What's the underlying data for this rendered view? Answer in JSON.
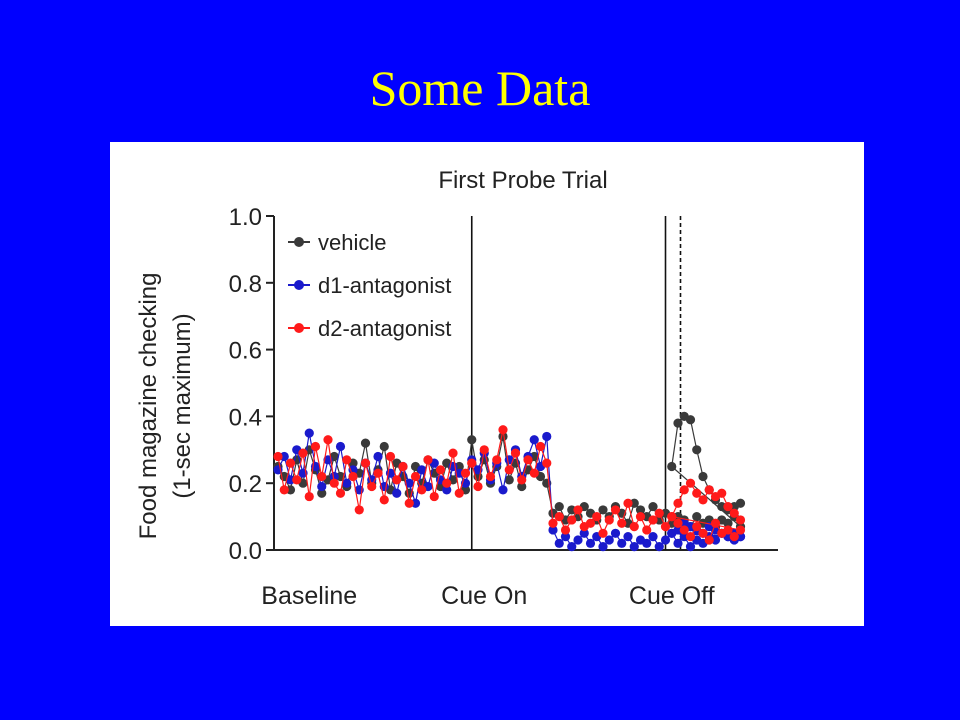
{
  "slide": {
    "title": "Some Data"
  },
  "chart_data": {
    "type": "scatter",
    "title": "First Probe Trial",
    "ylabel_lines": [
      "Food magazine checking",
      "(1-sec maximum)"
    ],
    "ylim": [
      0.0,
      1.0
    ],
    "yticks": [
      "0.0",
      "0.2",
      "0.4",
      "0.6",
      "0.8",
      "1.0"
    ],
    "x_range": [
      0,
      40
    ],
    "xticks": [
      {
        "label": "Baseline",
        "x": 2.5
      },
      {
        "label": "Cue On",
        "x": 16.5
      },
      {
        "label": "Cue Off",
        "x": 31.5
      }
    ],
    "markers": [
      {
        "x": 15.5,
        "style": "solid"
      },
      {
        "x": 31.0,
        "style": "solid"
      },
      {
        "x": 32.2,
        "style": "dashed"
      }
    ],
    "legend_position": "top-left",
    "grid": false,
    "series": [
      {
        "name": "vehicle",
        "color": "#3a3a3a",
        "x": [
          0,
          0.5,
          1,
          1.5,
          2,
          2.5,
          3,
          3.5,
          4,
          4.5,
          5,
          5.5,
          6,
          6.5,
          7,
          7.5,
          8,
          8.5,
          9,
          9.5,
          10,
          10.5,
          11,
          11.5,
          12,
          12.5,
          13,
          13.5,
          14,
          14.5,
          15,
          15.5,
          16,
          16.5,
          17,
          17.5,
          18,
          18.5,
          19,
          19.5,
          20,
          20.5,
          21,
          21.5,
          22,
          22.5,
          23,
          23.5,
          24,
          24.5,
          25,
          25.5,
          26,
          26.5,
          27,
          27.5,
          28,
          28.5,
          29,
          29.5,
          30,
          30.5,
          31,
          31.5,
          32,
          32.5,
          33,
          33.5,
          34,
          34.5,
          35,
          35.5,
          36,
          36.5,
          37
        ],
        "y": [
          0.25,
          0.22,
          0.18,
          0.27,
          0.2,
          0.3,
          0.24,
          0.17,
          0.21,
          0.28,
          0.22,
          0.19,
          0.26,
          0.23,
          0.32,
          0.2,
          0.24,
          0.31,
          0.18,
          0.26,
          0.22,
          0.17,
          0.25,
          0.2,
          0.27,
          0.23,
          0.19,
          0.26,
          0.21,
          0.25,
          0.18,
          0.33,
          0.22,
          0.27,
          0.2,
          0.25,
          0.34,
          0.21,
          0.26,
          0.19,
          0.24,
          0.28,
          0.22,
          0.2,
          0.11,
          0.13,
          0.09,
          0.12,
          0.1,
          0.13,
          0.11,
          0.09,
          0.12,
          0.1,
          0.13,
          0.11,
          0.08,
          0.14,
          0.12,
          0.1,
          0.13,
          0.09,
          0.11,
          0.08,
          0.1,
          0.09,
          0.07,
          0.1,
          0.08,
          0.09,
          0.07,
          0.09,
          0.08,
          0.1,
          0.07
        ]
      },
      {
        "name": "d1-antagonist",
        "color": "#1a1acc",
        "x": [
          0,
          0.5,
          1,
          1.5,
          2,
          2.5,
          3,
          3.5,
          4,
          4.5,
          5,
          5.5,
          6,
          6.5,
          7,
          7.5,
          8,
          8.5,
          9,
          9.5,
          10,
          10.5,
          11,
          11.5,
          12,
          12.5,
          13,
          13.5,
          14,
          14.5,
          15,
          15.5,
          16,
          16.5,
          17,
          17.5,
          18,
          18.5,
          19,
          19.5,
          20,
          20.5,
          21,
          21.5,
          22,
          22.5,
          23,
          23.5,
          24,
          24.5,
          25,
          25.5,
          26,
          26.5,
          27,
          27.5,
          28,
          28.5,
          29,
          29.5,
          30,
          30.5,
          31,
          31.5,
          32,
          32.5,
          33,
          33.5,
          34,
          34.5,
          35,
          35.5,
          36,
          36.5,
          37
        ],
        "y": [
          0.24,
          0.28,
          0.21,
          0.3,
          0.23,
          0.35,
          0.25,
          0.19,
          0.27,
          0.22,
          0.31,
          0.2,
          0.24,
          0.18,
          0.26,
          0.21,
          0.28,
          0.19,
          0.23,
          0.17,
          0.25,
          0.2,
          0.14,
          0.24,
          0.19,
          0.26,
          0.21,
          0.18,
          0.25,
          0.23,
          0.2,
          0.27,
          0.24,
          0.29,
          0.21,
          0.26,
          0.18,
          0.27,
          0.3,
          0.22,
          0.28,
          0.33,
          0.25,
          0.34,
          0.06,
          0.02,
          0.04,
          0.01,
          0.03,
          0.05,
          0.02,
          0.04,
          0.01,
          0.03,
          0.05,
          0.02,
          0.04,
          0.01,
          0.03,
          0.02,
          0.04,
          0.01,
          0.03,
          0.05,
          0.02,
          0.04,
          0.01,
          0.03,
          0.02,
          0.04,
          0.03,
          0.05,
          0.04,
          0.03,
          0.04
        ]
      },
      {
        "name": "d2-antagonist",
        "color": "#ff1a1a",
        "x": [
          0,
          0.5,
          1,
          1.5,
          2,
          2.5,
          3,
          3.5,
          4,
          4.5,
          5,
          5.5,
          6,
          6.5,
          7,
          7.5,
          8,
          8.5,
          9,
          9.5,
          10,
          10.5,
          11,
          11.5,
          12,
          12.5,
          13,
          13.5,
          14,
          14.5,
          15,
          15.5,
          16,
          16.5,
          17,
          17.5,
          18,
          18.5,
          19,
          19.5,
          20,
          20.5,
          21,
          21.5,
          22,
          22.5,
          23,
          23.5,
          24,
          24.5,
          25,
          25.5,
          26,
          26.5,
          27,
          27.5,
          28,
          28.5,
          29,
          29.5,
          30,
          30.5,
          31,
          31.5,
          32,
          32.5,
          33,
          33.5,
          34,
          34.5,
          35,
          35.5,
          36,
          36.5,
          37
        ],
        "y": [
          0.28,
          0.18,
          0.26,
          0.21,
          0.29,
          0.16,
          0.31,
          0.22,
          0.33,
          0.2,
          0.17,
          0.27,
          0.22,
          0.12,
          0.26,
          0.19,
          0.23,
          0.15,
          0.28,
          0.21,
          0.25,
          0.14,
          0.22,
          0.18,
          0.27,
          0.16,
          0.24,
          0.2,
          0.29,
          0.17,
          0.23,
          0.26,
          0.19,
          0.3,
          0.22,
          0.27,
          0.36,
          0.24,
          0.29,
          0.21,
          0.27,
          0.23,
          0.31,
          0.26,
          0.08,
          0.1,
          0.06,
          0.09,
          0.12,
          0.07,
          0.08,
          0.1,
          0.05,
          0.09,
          0.12,
          0.08,
          0.14,
          0.07,
          0.1,
          0.06,
          0.09,
          0.11,
          0.07,
          0.1,
          0.08,
          0.06,
          0.04,
          0.07,
          0.05,
          0.03,
          0.08,
          0.05,
          0.06,
          0.04,
          0.06
        ]
      }
    ],
    "cue_off_response": [
      {
        "series": "vehicle",
        "x": [
          31.5,
          32,
          32.5,
          33,
          33.5,
          34,
          34.5,
          35,
          35.5,
          36,
          36.5,
          37
        ],
        "y": [
          0.25,
          0.38,
          0.4,
          0.39,
          0.3,
          0.22,
          0.18,
          0.15,
          0.13,
          0.12,
          0.13,
          0.14
        ]
      },
      {
        "series": "d1-antagonist",
        "x": [
          31.5,
          32,
          32.5,
          33,
          33.5,
          34,
          34.5,
          35,
          35.5,
          36,
          36.5,
          37
        ],
        "y": [
          0.05,
          0.06,
          0.08,
          0.07,
          0.06,
          0.05,
          0.07,
          0.06,
          0.05,
          0.04,
          0.05,
          0.04
        ]
      },
      {
        "series": "d2-antagonist",
        "x": [
          31.5,
          32,
          32.5,
          33,
          33.5,
          34,
          34.5,
          35,
          35.5,
          36,
          36.5,
          37
        ],
        "y": [
          0.1,
          0.14,
          0.18,
          0.2,
          0.17,
          0.15,
          0.18,
          0.16,
          0.17,
          0.13,
          0.11,
          0.09
        ]
      }
    ]
  }
}
